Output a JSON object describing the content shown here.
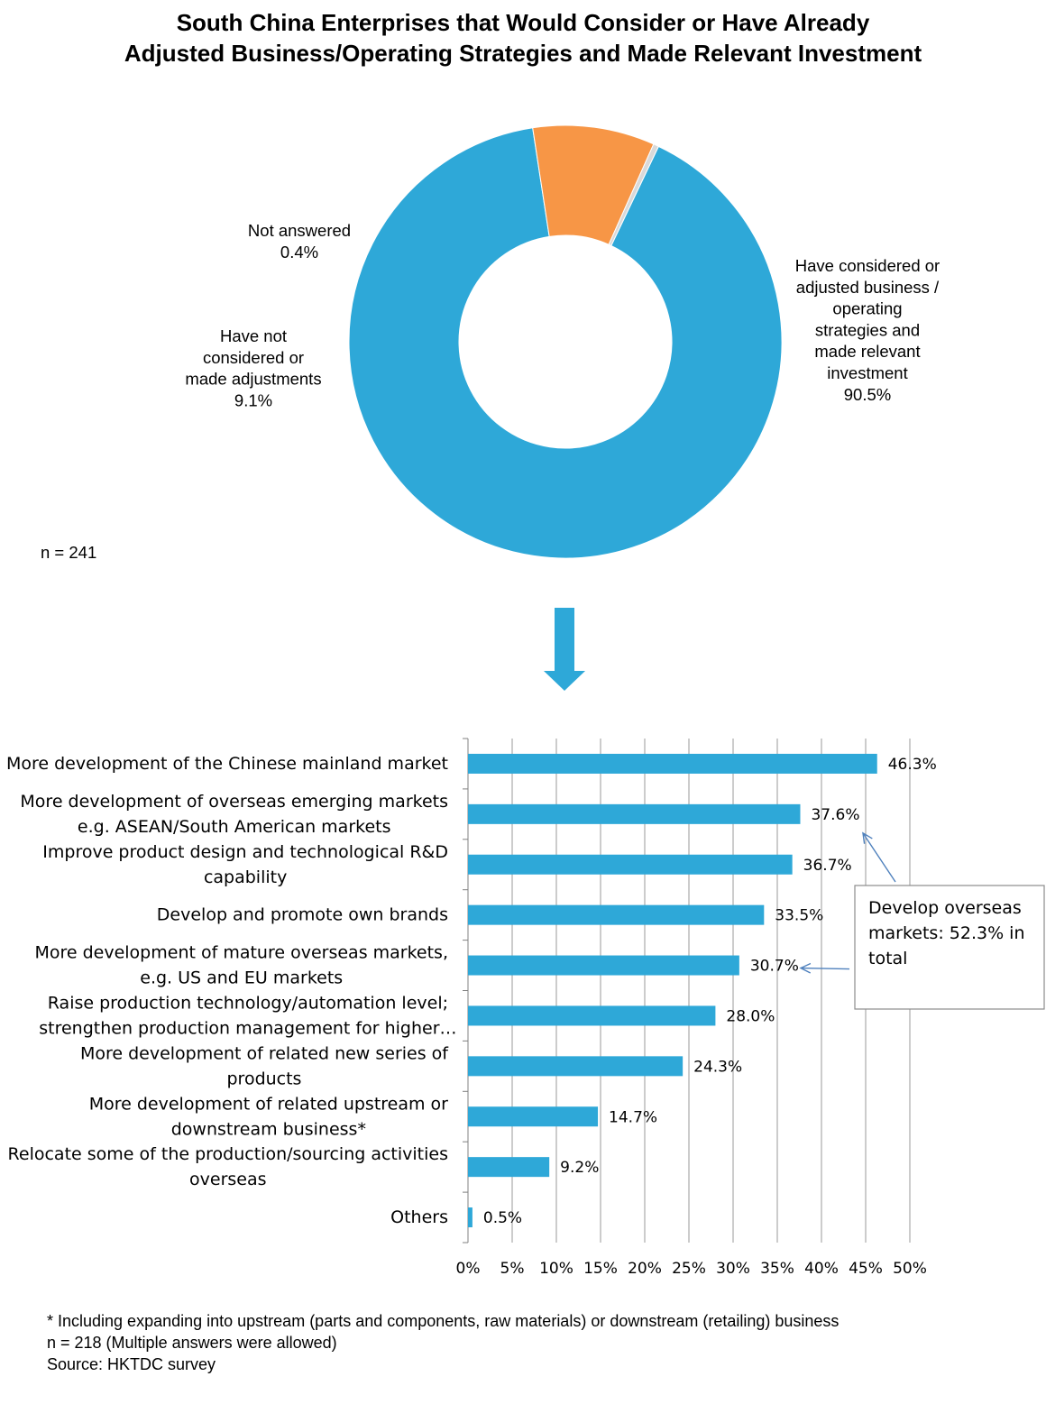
{
  "title": {
    "line1": "South China Enterprises that Would Consider or Have Already",
    "line2": "Adjusted Business/Operating Strategies and Made Relevant Investment"
  },
  "colors": {
    "blue": "#2ea8d8",
    "orange": "#f79646",
    "grey": "#d9d9d9",
    "gridline": "#999999"
  },
  "chart_data": [
    {
      "type": "pie",
      "donut": true,
      "slices": [
        {
          "label_lines": [
            "Have considered or",
            "adjusted business /",
            "operating",
            "strategies and",
            "made relevant",
            "investment"
          ],
          "value": 90.5,
          "value_text": "90.5%",
          "color": "#2ea8d8"
        },
        {
          "label_lines": [
            "Have not",
            "considered or",
            "made adjustments"
          ],
          "value": 9.1,
          "value_text": "9.1%",
          "color": "#f79646"
        },
        {
          "label_lines": [
            "Not answered"
          ],
          "value": 0.4,
          "value_text": "0.4%",
          "color": "#d9d9d9"
        }
      ],
      "sample_note": "n = 241"
    },
    {
      "type": "bar",
      "orientation": "horizontal",
      "categories": [
        [
          "More development of the Chinese mainland market"
        ],
        [
          "More development of overseas emerging markets",
          "e.g. ASEAN/South American markets"
        ],
        [
          "Improve product design and technological R&D",
          "capability"
        ],
        [
          "Develop and promote own brands"
        ],
        [
          "More development of mature overseas markets,",
          "e.g. US and EU markets"
        ],
        [
          "Raise production technology/automation level;",
          "strengthen production management for higher…"
        ],
        [
          "More development of related new series of",
          "products"
        ],
        [
          "More development of related upstream or",
          "downstream business*"
        ],
        [
          "Relocate some of the production/sourcing activities",
          "overseas"
        ],
        [
          "Others"
        ]
      ],
      "values": [
        46.3,
        37.6,
        36.7,
        33.5,
        30.7,
        28.0,
        24.3,
        14.7,
        9.2,
        0.5
      ],
      "value_labels": [
        "46.3%",
        "37.6%",
        "36.7%",
        "33.5%",
        "30.7%",
        "28.0%",
        "24.3%",
        "14.7%",
        "9.2%",
        "0.5%"
      ],
      "xlim": [
        0,
        50
      ],
      "xticks": [
        0,
        5,
        10,
        15,
        20,
        25,
        30,
        35,
        40,
        45,
        50
      ],
      "xtick_labels": [
        "0%",
        "5%",
        "10%",
        "15%",
        "20%",
        "25%",
        "30%",
        "35%",
        "40%",
        "45%",
        "50%"
      ],
      "grid": true,
      "color": "#2ea8d8",
      "callout": {
        "lines": [
          "Develop overseas",
          "markets: 52.3% in",
          "total"
        ],
        "points_to": [
          1,
          4
        ]
      }
    }
  ],
  "notes": [
    "* Including expanding into upstream (parts and components, raw materials) or downstream (retailing) business",
    "n = 218 (Multiple answers were allowed)",
    "Source: HKTDC survey"
  ]
}
